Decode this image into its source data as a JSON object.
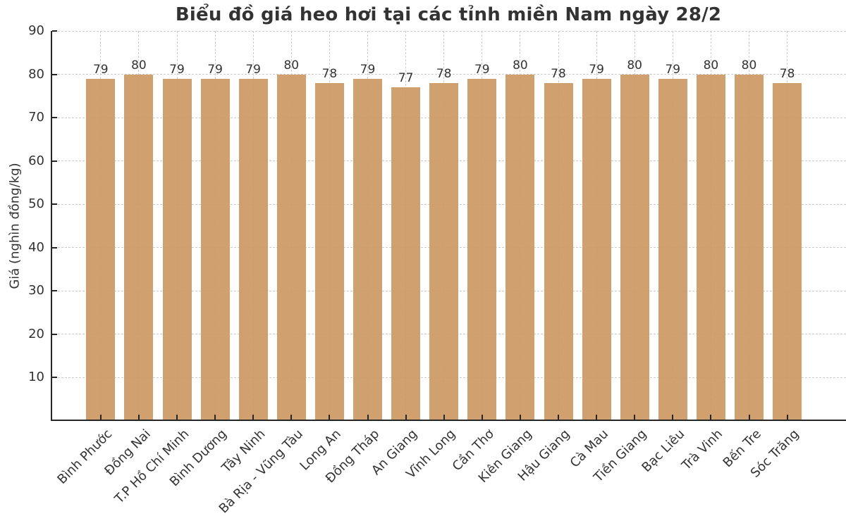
{
  "chart_data": {
    "type": "bar",
    "title": "Biểu đồ giá heo hơi tại các tỉnh miền Nam ngày 28/2",
    "xlabel": "",
    "ylabel": "Giá (nghìn đồng/kg)",
    "categories": [
      "Bình Phước",
      "Đồng Nai",
      "T.P Hồ Chí Minh",
      "Bình Dương",
      "Tây Ninh",
      "Bà Rịa - Vũng Tàu",
      "Long An",
      "Đồng Tháp",
      "An Giang",
      "Vĩnh Long",
      "Cần Thơ",
      "Kiên Giang",
      "Hậu Giang",
      "Cà Mau",
      "Tiền Giang",
      "Bạc Liêu",
      "Trà Vinh",
      "Bến Tre",
      "Sóc Trăng"
    ],
    "values": [
      79,
      80,
      79,
      79,
      79,
      80,
      78,
      79,
      77,
      78,
      79,
      80,
      78,
      79,
      80,
      79,
      80,
      80,
      78
    ],
    "ylim": [
      0,
      90
    ],
    "yticks": [
      10,
      20,
      30,
      40,
      50,
      60,
      70,
      80,
      90
    ],
    "bar_value_labels_shown": true,
    "grid": "dashed horizontal and vertical",
    "legend": "none",
    "tick_direction": "in",
    "x_tick_rotation_deg": 45
  },
  "colors": {
    "bar": "#CC9A63",
    "grid": "#cccccc",
    "text": "#333333",
    "spine": "#262626",
    "background": "#ffffff"
  }
}
